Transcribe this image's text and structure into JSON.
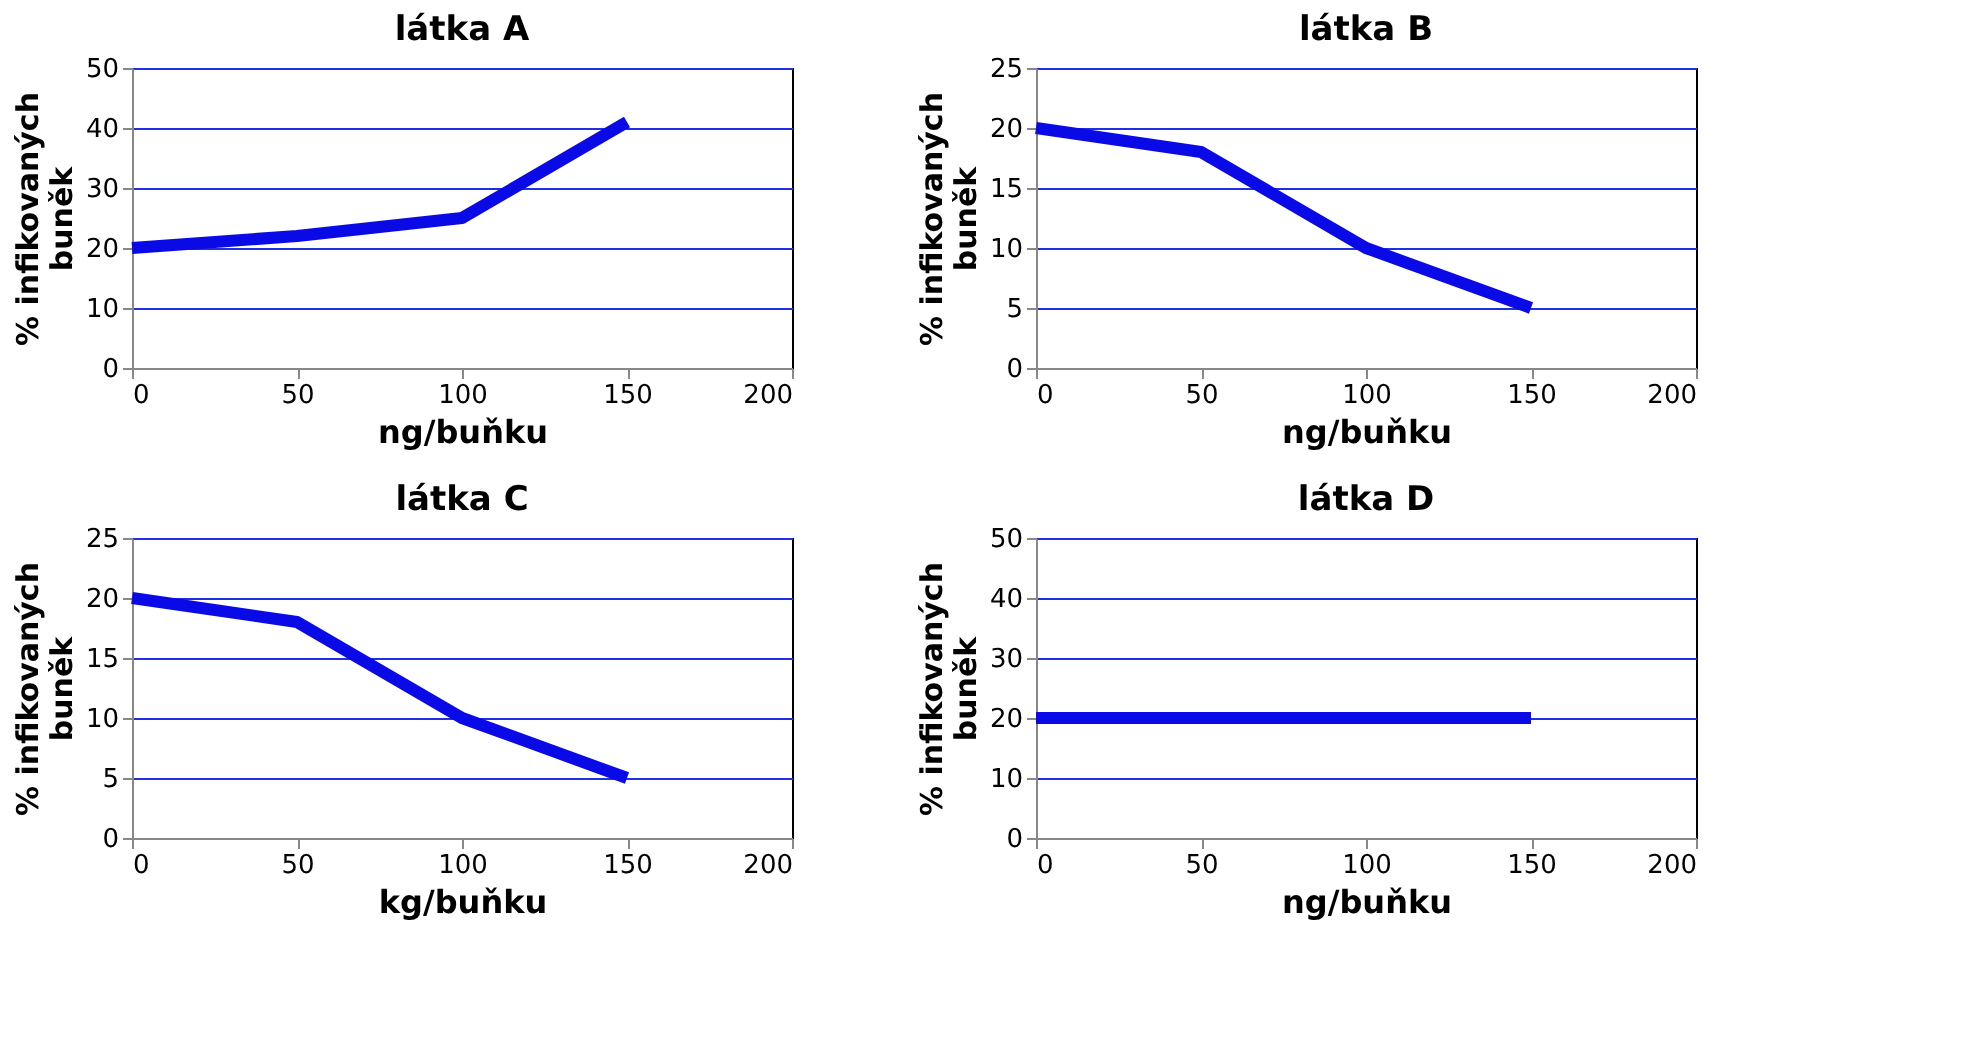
{
  "chart_data": [
    {
      "type": "line",
      "title": "látka A",
      "xlabel": "ng/buňku",
      "ylabel": "% infikovaných buněk",
      "x": [
        0,
        50,
        100,
        150
      ],
      "values": [
        20,
        22,
        25,
        41
      ],
      "color": "#0a0ae6",
      "xlim": [
        0,
        200
      ],
      "xticks": [
        0,
        50,
        100,
        150,
        200
      ],
      "ylim": [
        0,
        50
      ],
      "yticks": [
        0,
        10,
        20,
        30,
        40,
        50
      ],
      "grid": "y"
    },
    {
      "type": "line",
      "title": "látka B",
      "xlabel": "ng/buňku",
      "ylabel": "% infikovaných buněk",
      "x": [
        0,
        50,
        100,
        150
      ],
      "values": [
        20,
        18,
        10,
        5
      ],
      "color": "#0a0ae6",
      "xlim": [
        0,
        200
      ],
      "xticks": [
        0,
        50,
        100,
        150,
        200
      ],
      "ylim": [
        0,
        25
      ],
      "yticks": [
        0,
        5,
        10,
        15,
        20,
        25
      ],
      "grid": "y"
    },
    {
      "type": "line",
      "title": "látka C",
      "xlabel": "kg/buňku",
      "ylabel": "% infikovaných buněk",
      "x": [
        0,
        50,
        100,
        150
      ],
      "values": [
        20,
        18,
        10,
        5
      ],
      "color": "#0a0ae6",
      "xlim": [
        0,
        200
      ],
      "xticks": [
        0,
        50,
        100,
        150,
        200
      ],
      "ylim": [
        0,
        25
      ],
      "yticks": [
        0,
        5,
        10,
        15,
        20,
        25
      ],
      "grid": "y"
    },
    {
      "type": "line",
      "title": "látka D",
      "xlabel": "ng/buňku",
      "ylabel": "% infikovaných buněk",
      "x": [
        0,
        50,
        100,
        150
      ],
      "values": [
        20,
        20,
        20,
        20
      ],
      "color": "#0a0ae6",
      "xlim": [
        0,
        200
      ],
      "xticks": [
        0,
        50,
        100,
        150,
        200
      ],
      "ylim": [
        0,
        50
      ],
      "yticks": [
        0,
        10,
        20,
        30,
        40,
        50
      ],
      "grid": "y"
    }
  ]
}
